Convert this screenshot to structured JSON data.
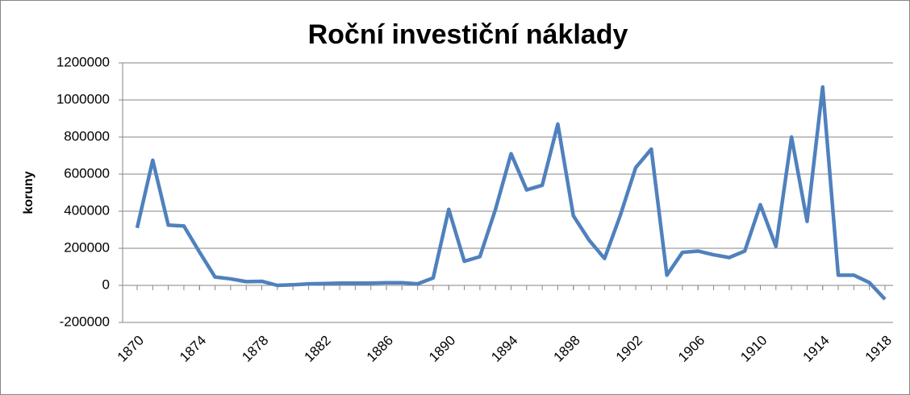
{
  "chart_data": {
    "type": "line",
    "title": "Roční investiční náklady",
    "y_label": "koruny",
    "x": [
      1870,
      1871,
      1872,
      1873,
      1874,
      1875,
      1876,
      1877,
      1878,
      1879,
      1880,
      1881,
      1882,
      1883,
      1884,
      1885,
      1886,
      1887,
      1888,
      1889,
      1890,
      1891,
      1892,
      1893,
      1894,
      1895,
      1896,
      1897,
      1898,
      1899,
      1900,
      1901,
      1902,
      1903,
      1904,
      1905,
      1906,
      1907,
      1908,
      1909,
      1910,
      1911,
      1912,
      1913,
      1914,
      1915,
      1916,
      1917,
      1918
    ],
    "series": [
      {
        "name": "koruny",
        "color": "#4f81bd",
        "values": [
          310000,
          675000,
          325000,
          320000,
          180000,
          45000,
          35000,
          20000,
          22000,
          0,
          3000,
          8000,
          10000,
          12000,
          12000,
          12000,
          14000,
          14000,
          8000,
          40000,
          410000,
          130000,
          155000,
          410000,
          710000,
          515000,
          540000,
          870000,
          375000,
          245000,
          145000,
          375000,
          635000,
          735000,
          55000,
          178000,
          185000,
          165000,
          150000,
          185000,
          435000,
          210000,
          800000,
          345000,
          1070000,
          55000,
          55000,
          15000,
          -75000
        ]
      }
    ],
    "xlim": [
      1870,
      1918
    ],
    "xticks": [
      1870,
      1874,
      1878,
      1882,
      1886,
      1890,
      1894,
      1898,
      1902,
      1906,
      1910,
      1914,
      1918
    ],
    "ylim": [
      -200000,
      1200000
    ],
    "yticks": [
      -200000,
      0,
      200000,
      400000,
      600000,
      800000,
      1000000,
      1200000
    ],
    "grid": true
  }
}
